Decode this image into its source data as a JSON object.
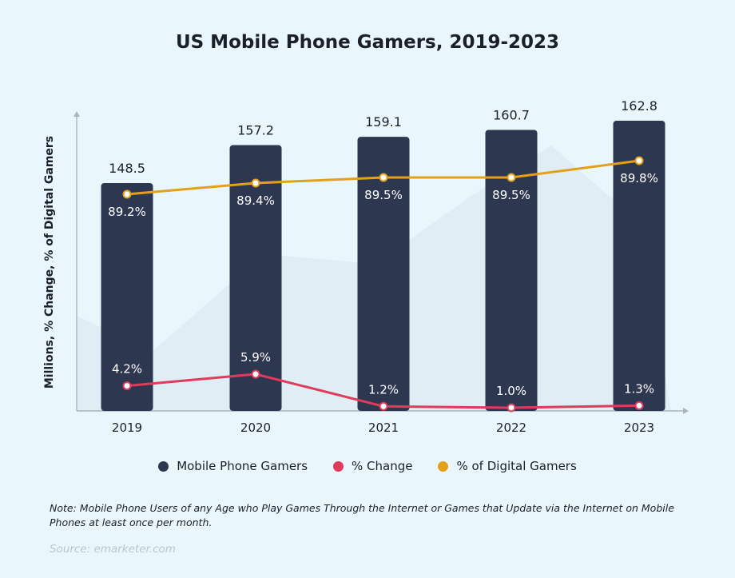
{
  "chart_data": {
    "type": "bar+line",
    "title": "US Mobile Phone Gamers, 2019-2023",
    "ylabel": "Millions, % Change, % of Digital Gamers",
    "categories": [
      "2019",
      "2020",
      "2021",
      "2022",
      "2023"
    ],
    "series": [
      {
        "name": "Mobile Phone Gamers",
        "type": "bar",
        "color": "#2e3750",
        "values": [
          148.5,
          157.2,
          159.1,
          160.7,
          162.8
        ],
        "labels": [
          "148.5",
          "157.2",
          "159.1",
          "160.7",
          "162.8"
        ]
      },
      {
        "name": "% Change",
        "type": "line",
        "color": "#e23a5c",
        "values": [
          4.2,
          5.9,
          1.2,
          1.0,
          1.3
        ],
        "labels": [
          "4.2%",
          "5.9%",
          "1.2%",
          "1.0%",
          "1.3%"
        ]
      },
      {
        "name": "% of Digital Gamers",
        "type": "line",
        "color": "#e5a019",
        "values": [
          89.2,
          89.4,
          89.5,
          89.5,
          89.8
        ],
        "labels": [
          "89.2%",
          "89.4%",
          "89.5%",
          "89.5%",
          "89.8%"
        ]
      }
    ],
    "grid": false,
    "legend_position": "bottom"
  },
  "note": "Note: Mobile Phone Users of any Age who Play Games Through the Internet or Games that Update via the Internet on Mobile Phones at least once per month.",
  "source": "Source: emarketer.com"
}
